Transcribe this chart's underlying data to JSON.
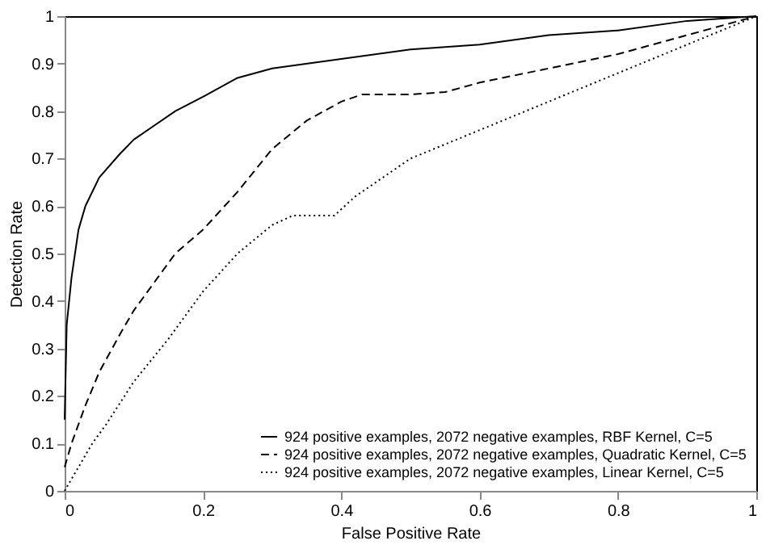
{
  "chart_data": {
    "type": "line",
    "xlabel": "False Positive Rate",
    "ylabel": "Detection Rate",
    "xlim": [
      0,
      1
    ],
    "ylim": [
      0,
      1
    ],
    "xticks": [
      0,
      0.2,
      0.4,
      0.6,
      0.8,
      1
    ],
    "yticks": [
      0,
      0.1,
      0.2,
      0.3,
      0.4,
      0.5,
      0.6,
      0.7,
      0.8,
      0.9,
      1
    ],
    "grid": false,
    "legend": "bottom right",
    "marker": "none",
    "series": [
      {
        "name": "924 positive examples, 2072 negative examples, RBF Kernel, C=5",
        "color": "#000000",
        "line_style": "solid",
        "x": [
          0,
          0.003,
          0.01,
          0.02,
          0.03,
          0.05,
          0.08,
          0.1,
          0.13,
          0.16,
          0.2,
          0.25,
          0.3,
          0.4,
          0.5,
          0.6,
          0.7,
          0.8,
          0.9,
          1
        ],
        "values": [
          0.15,
          0.35,
          0.45,
          0.55,
          0.6,
          0.66,
          0.71,
          0.74,
          0.77,
          0.8,
          0.83,
          0.87,
          0.89,
          0.91,
          0.93,
          0.94,
          0.96,
          0.97,
          0.99,
          1
        ]
      },
      {
        "name": "924 positive examples, 2072 negative examples, Quadratic Kernel, C=5",
        "color": "#000000",
        "line_style": "dashed",
        "x": [
          0,
          0.01,
          0.03,
          0.05,
          0.08,
          0.1,
          0.13,
          0.16,
          0.2,
          0.25,
          0.3,
          0.35,
          0.4,
          0.43,
          0.5,
          0.55,
          0.6,
          0.7,
          0.8,
          0.9,
          1
        ],
        "values": [
          0.05,
          0.1,
          0.18,
          0.25,
          0.33,
          0.38,
          0.44,
          0.5,
          0.55,
          0.63,
          0.72,
          0.78,
          0.82,
          0.835,
          0.835,
          0.84,
          0.86,
          0.89,
          0.92,
          0.96,
          1
        ]
      },
      {
        "name": "924 positive examples, 2072 negative examples, Linear Kernel, C=5",
        "color": "#000000",
        "line_style": "dotted",
        "x": [
          0,
          0.02,
          0.04,
          0.06,
          0.1,
          0.15,
          0.2,
          0.25,
          0.3,
          0.33,
          0.39,
          0.42,
          0.46,
          0.5,
          0.6,
          0.7,
          0.8,
          0.9,
          1
        ],
        "values": [
          0,
          0.05,
          0.1,
          0.14,
          0.23,
          0.32,
          0.42,
          0.5,
          0.56,
          0.58,
          0.58,
          0.62,
          0.66,
          0.7,
          0.76,
          0.82,
          0.88,
          0.94,
          1
        ]
      }
    ]
  }
}
